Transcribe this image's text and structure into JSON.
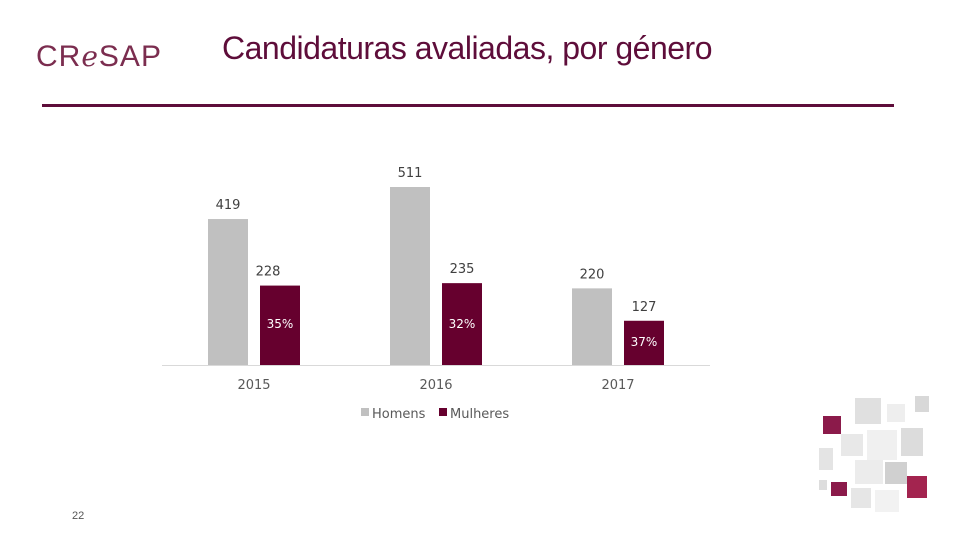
{
  "logo": {
    "pre": "CR",
    "mid": "e",
    "post": "SAP"
  },
  "slide": {
    "title": "Candidaturas avaliadas, por género",
    "page_number": "22"
  },
  "colors": {
    "homens": "#c0c0c0",
    "mulheres": "#66002e",
    "title": "#5e0d3a"
  },
  "chart_data": {
    "type": "bar",
    "title": "",
    "xlabel": "",
    "ylabel": "",
    "categories": [
      "2015",
      "2016",
      "2017"
    ],
    "series": [
      {
        "name": "Homens",
        "values": [
          419,
          511,
          220
        ]
      },
      {
        "name": "Mulheres",
        "values": [
          228,
          235,
          127
        ]
      }
    ],
    "annotations": [
      "35%",
      "32%",
      "37%"
    ],
    "ylim": [
      0,
      600
    ],
    "grid": false,
    "legend": "bottom"
  }
}
